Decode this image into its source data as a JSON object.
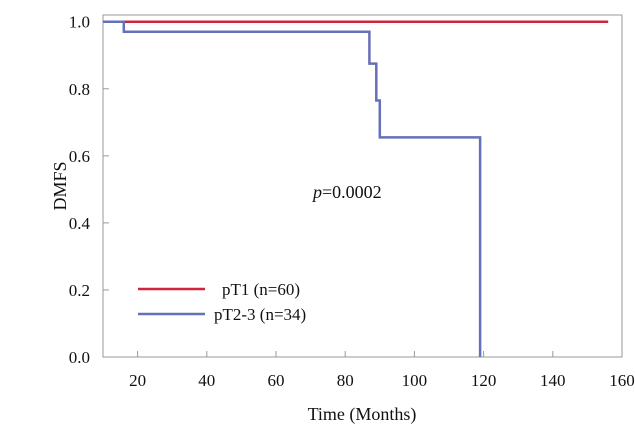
{
  "chart_data": {
    "type": "line",
    "step": true,
    "title": "",
    "xlabel": "Time (Months)",
    "ylabel": "DMFS",
    "xlim": [
      10,
      160
    ],
    "ylim": [
      0.0,
      1.02
    ],
    "xticks": [
      20,
      40,
      60,
      80,
      100,
      120,
      140,
      160
    ],
    "yticks": [
      0.0,
      0.2,
      0.4,
      0.6,
      0.8,
      1.0
    ],
    "x_tick_labels": [
      "20",
      "40",
      "60",
      "80",
      "100",
      "120",
      "140",
      "160"
    ],
    "y_tick_labels": [
      "0.0",
      "0.2",
      "0.4",
      "0.6",
      "0.8",
      "1.0"
    ],
    "grid": false,
    "legend_position": "bottom-left",
    "annotation": {
      "italic": "p",
      "rest": "=0.0002",
      "x": 88,
      "y": 0.51
    },
    "series": [
      {
        "name": "pT1 (n=60)",
        "color": "#d0243a",
        "x": [
          10,
          156
        ],
        "y": [
          1.0,
          1.0
        ]
      },
      {
        "name": "pT2-3 (n=34)",
        "color": "#6670b8",
        "x": [
          10,
          16,
          16,
          87,
          87,
          89,
          89,
          90,
          90,
          119,
          119
        ],
        "y": [
          1.0,
          1.0,
          0.97,
          0.97,
          0.875,
          0.875,
          0.765,
          0.765,
          0.655,
          0.655,
          0.0
        ]
      }
    ]
  }
}
